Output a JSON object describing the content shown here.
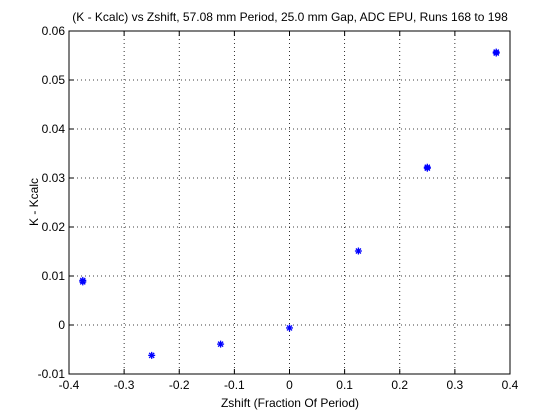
{
  "chart_data": {
    "type": "scatter",
    "title": "(K - Kcalc) vs Zshift, 57.08 mm Period, 25.0 mm Gap, ADC EPU, Runs 168 to 198",
    "xlabel": "Zshift (Fraction Of Period)",
    "ylabel": "K - Kcalc",
    "xlim": [
      -0.4,
      0.4
    ],
    "ylim": [
      -0.01,
      0.06
    ],
    "xticks": [
      -0.4,
      -0.3,
      -0.2,
      -0.1,
      0,
      0.1,
      0.2,
      0.3,
      0.4
    ],
    "xtick_labels": [
      "-0.4",
      "-0.3",
      "-0.2",
      "-0.1",
      "0",
      "0.1",
      "0.2",
      "0.3",
      "0.4"
    ],
    "yticks": [
      -0.01,
      0,
      0.01,
      0.02,
      0.03,
      0.04,
      0.05,
      0.06
    ],
    "ytick_labels": [
      "-0.01",
      "0",
      "0.01",
      "0.02",
      "0.03",
      "0.04",
      "0.05",
      "0.06"
    ],
    "grid": true,
    "marker_color": "#0000ff",
    "series": [
      {
        "x": [
          -0.375,
          -0.375,
          -0.25,
          -0.125,
          0,
          0.125,
          0.25,
          0.25,
          0.375,
          0.375
        ],
        "y": [
          0.0088,
          0.0091,
          -0.0062,
          -0.0039,
          -0.0006,
          0.0151,
          0.032,
          0.0322,
          0.0555,
          0.0557
        ]
      }
    ]
  }
}
